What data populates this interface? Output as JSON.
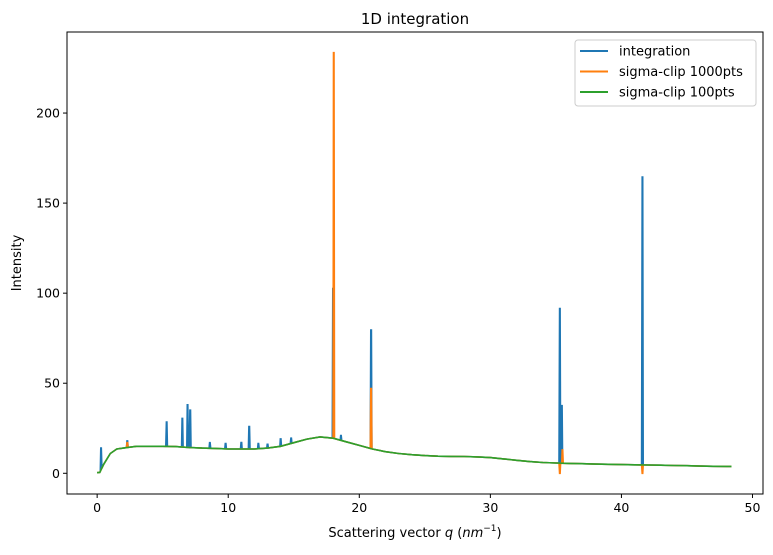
{
  "chart_data": {
    "type": "line",
    "title": "1D integration",
    "xlabel": "Scattering vector",
    "xlabel_var": "q",
    "xlabel_unit_open": " (",
    "xlabel_unit": "nm",
    "xlabel_exp": "−1",
    "xlabel_unit_close": ")",
    "ylabel": "Intensity",
    "xlim": [
      -2.3,
      50.8
    ],
    "ylim": [
      -11.5,
      245
    ],
    "xticks": [
      0,
      10,
      20,
      30,
      40,
      50
    ],
    "yticks": [
      0,
      50,
      100,
      150,
      200
    ],
    "grid": false,
    "legend_position": "top-right",
    "baseline_x": [
      0,
      0.2,
      0.5,
      1,
      1.5,
      2,
      3,
      4,
      5,
      6,
      7,
      8,
      9,
      10,
      11,
      12,
      13,
      14,
      15,
      16,
      17,
      18,
      19,
      20,
      21,
      22,
      23,
      24,
      25,
      26,
      27,
      28,
      29,
      30,
      31,
      32,
      33,
      34,
      35,
      36,
      37,
      38,
      39,
      40,
      41,
      42,
      43,
      44,
      45,
      46,
      47,
      48,
      48.4
    ],
    "baseline_y": [
      0.3,
      0.5,
      5,
      11,
      13.5,
      14,
      15,
      15,
      15,
      14.8,
      14.3,
      14,
      13.8,
      13.5,
      13.5,
      13.5,
      14,
      15,
      17,
      19,
      20.2,
      19.5,
      17.5,
      15.5,
      13.5,
      12,
      11,
      10.3,
      9.8,
      9.5,
      9.4,
      9.3,
      9.1,
      8.7,
      8,
      7.2,
      6.5,
      6,
      5.7,
      5.5,
      5.3,
      5.1,
      5,
      4.8,
      4.7,
      4.6,
      4.5,
      4.3,
      4.2,
      4,
      3.9,
      3.8,
      3.8
    ],
    "series": [
      {
        "name": "integration",
        "color": "#1f77b4",
        "spikes": [
          [
            0.3,
            14
          ],
          [
            2.3,
            18
          ],
          [
            5.3,
            28.5
          ],
          [
            6.5,
            30.5
          ],
          [
            6.9,
            38
          ],
          [
            7.1,
            35
          ],
          [
            8.6,
            17
          ],
          [
            9.8,
            16.5
          ],
          [
            11.0,
            17.5
          ],
          [
            11.6,
            26
          ],
          [
            12.3,
            16.5
          ],
          [
            13.0,
            16.5
          ],
          [
            14.0,
            19.5
          ],
          [
            14.8,
            19.5
          ],
          [
            18.0,
            103
          ],
          [
            18.6,
            21
          ],
          [
            20.9,
            79.5
          ],
          [
            35.3,
            91.5
          ],
          [
            35.45,
            37.5
          ],
          [
            41.6,
            164.5
          ]
        ]
      },
      {
        "name": "sigma-clip 1000pts",
        "color": "#ff7f0e",
        "spikes": [
          [
            2.3,
            17
          ],
          [
            18.05,
            233.5
          ],
          [
            20.9,
            47
          ],
          [
            35.3,
            0
          ],
          [
            35.5,
            13
          ],
          [
            41.6,
            0
          ]
        ]
      },
      {
        "name": "sigma-clip 100pts",
        "color": "#2ca02c",
        "spikes": []
      }
    ]
  }
}
